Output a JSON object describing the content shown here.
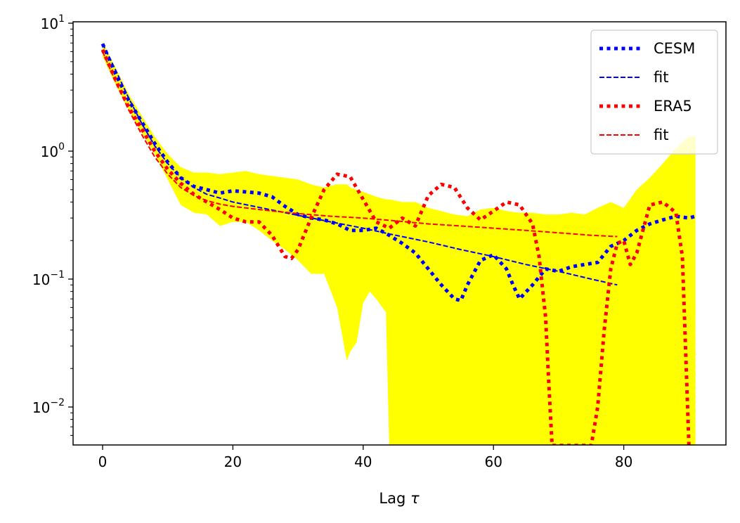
{
  "chart_data": {
    "type": "line",
    "xlabel": "Lag",
    "xlabel_symbol": "τ",
    "ylabel": "",
    "yscale": "log",
    "xlim": [
      -4.5,
      95.5
    ],
    "ylim": [
      0.005,
      10.5
    ],
    "xticks": [
      0,
      20,
      40,
      60,
      80
    ],
    "ytick_labels": [
      {
        "value": 10,
        "base": "10",
        "exp": "1"
      },
      {
        "value": 1,
        "base": "10",
        "exp": "0"
      },
      {
        "value": 0.1,
        "base": "10",
        "exp": "−1"
      },
      {
        "value": 0.01,
        "base": "10",
        "exp": "−2"
      }
    ],
    "band": {
      "name": "spread",
      "color": "#ffff00",
      "x": [
        0,
        2,
        4,
        6,
        8,
        10,
        12,
        14,
        16,
        18,
        20,
        22,
        24,
        26,
        28,
        30,
        32,
        34,
        36,
        37.5,
        38,
        39,
        40,
        41,
        42,
        43.5,
        44,
        46,
        48,
        50,
        52,
        54,
        56,
        58,
        60,
        62,
        64,
        66,
        68,
        70,
        72,
        74,
        76,
        78,
        80,
        82,
        84,
        86,
        88,
        90,
        91
      ],
      "upper": [
        7.2,
        4.5,
        2.8,
        1.9,
        1.3,
        0.95,
        0.75,
        0.68,
        0.68,
        0.66,
        0.68,
        0.7,
        0.66,
        0.64,
        0.62,
        0.6,
        0.55,
        0.52,
        0.55,
        0.55,
        0.52,
        0.5,
        0.48,
        0.46,
        0.44,
        0.42,
        0.42,
        0.4,
        0.4,
        0.36,
        0.34,
        0.32,
        0.31,
        0.35,
        0.36,
        0.34,
        0.33,
        0.33,
        0.32,
        0.32,
        0.33,
        0.32,
        0.36,
        0.4,
        0.36,
        0.5,
        0.62,
        0.8,
        1.05,
        1.3,
        1.3
      ],
      "lower": [
        5.5,
        3.3,
        2.1,
        1.4,
        0.95,
        0.6,
        0.38,
        0.33,
        0.32,
        0.26,
        0.28,
        0.28,
        0.24,
        0.2,
        0.17,
        0.14,
        0.11,
        0.11,
        0.06,
        0.023,
        0.027,
        0.032,
        0.065,
        0.08,
        0.07,
        0.055,
        0.0049,
        0.0049,
        0.0049,
        0.0049,
        0.0049,
        0.0049,
        0.0049,
        0.0049,
        0.0049,
        0.0049,
        0.0049,
        0.0049,
        0.0049,
        0.0049,
        0.0049,
        0.0049,
        0.0049,
        0.0049,
        0.0049,
        0.0049,
        0.0049,
        0.0049,
        0.0049,
        0.0049,
        0.0049
      ]
    },
    "series": [
      {
        "name": "CESM",
        "legend": "CESM",
        "color": "#0000ff",
        "style": "dotted",
        "x": [
          0,
          2,
          4,
          6,
          8,
          10,
          12,
          14,
          16,
          18,
          20,
          22,
          24,
          26,
          28,
          30,
          32,
          34,
          36,
          38,
          40,
          42,
          44,
          46,
          48,
          50,
          52,
          54,
          55,
          56,
          58,
          60,
          62,
          63,
          64,
          66,
          68,
          70,
          72,
          74,
          76,
          78,
          80,
          82,
          84,
          86,
          88,
          90,
          91
        ],
        "y": [
          6.9,
          4.0,
          2.5,
          1.7,
          1.15,
          0.82,
          0.62,
          0.53,
          0.5,
          0.47,
          0.49,
          0.48,
          0.47,
          0.44,
          0.37,
          0.32,
          0.3,
          0.29,
          0.27,
          0.24,
          0.24,
          0.25,
          0.22,
          0.19,
          0.16,
          0.12,
          0.09,
          0.07,
          0.068,
          0.09,
          0.14,
          0.155,
          0.12,
          0.09,
          0.07,
          0.09,
          0.12,
          0.115,
          0.125,
          0.13,
          0.135,
          0.18,
          0.2,
          0.24,
          0.27,
          0.29,
          0.31,
          0.3,
          0.31
        ]
      },
      {
        "name": "CESM fit",
        "legend": "fit",
        "color": "#0000ff",
        "style": "dashed",
        "x": [
          0,
          2,
          4,
          6,
          8,
          10,
          12,
          14,
          16,
          18,
          20,
          25,
          30,
          35,
          40,
          45,
          50,
          55,
          60,
          65,
          70,
          75,
          79
        ],
        "y": [
          6.9,
          4.3,
          2.6,
          1.65,
          1.1,
          0.8,
          0.62,
          0.52,
          0.46,
          0.43,
          0.4,
          0.355,
          0.315,
          0.28,
          0.25,
          0.22,
          0.195,
          0.17,
          0.15,
          0.13,
          0.115,
          0.1,
          0.09
        ]
      },
      {
        "name": "ERA5",
        "legend": "ERA5",
        "color": "#ff0000",
        "style": "dotted",
        "x": [
          0,
          2,
          4,
          6,
          8,
          10,
          12,
          14,
          16,
          18,
          20,
          22,
          24,
          26,
          28,
          29,
          30,
          32,
          34,
          36,
          38,
          40,
          42,
          44,
          46,
          48,
          50,
          52,
          54,
          56,
          58,
          60,
          62,
          64,
          66,
          67,
          68,
          68.5,
          69,
          70,
          72,
          74,
          75,
          76,
          77,
          78,
          79,
          80,
          81,
          82,
          84,
          86,
          88,
          89,
          90
        ],
        "y": [
          6.2,
          3.6,
          2.2,
          1.5,
          1.0,
          0.72,
          0.56,
          0.46,
          0.4,
          0.35,
          0.3,
          0.28,
          0.28,
          0.22,
          0.15,
          0.145,
          0.17,
          0.3,
          0.5,
          0.66,
          0.63,
          0.42,
          0.28,
          0.25,
          0.3,
          0.26,
          0.45,
          0.55,
          0.52,
          0.36,
          0.29,
          0.34,
          0.4,
          0.38,
          0.27,
          0.15,
          0.05,
          0.015,
          0.005,
          0.005,
          0.005,
          0.005,
          0.005,
          0.01,
          0.04,
          0.12,
          0.19,
          0.2,
          0.13,
          0.16,
          0.38,
          0.4,
          0.33,
          0.15,
          0.005
        ]
      },
      {
        "name": "ERA5 fit",
        "legend": "fit",
        "color": "#ff0000",
        "style": "dashed",
        "x": [
          0,
          2,
          4,
          6,
          8,
          10,
          12,
          14,
          16,
          18,
          20,
          25,
          30,
          35,
          40,
          45,
          50,
          55,
          60,
          65,
          70,
          75,
          79
        ],
        "y": [
          6.0,
          3.5,
          2.1,
          1.35,
          0.9,
          0.66,
          0.52,
          0.45,
          0.41,
          0.385,
          0.37,
          0.345,
          0.325,
          0.31,
          0.3,
          0.285,
          0.27,
          0.26,
          0.25,
          0.24,
          0.23,
          0.22,
          0.215
        ]
      }
    ],
    "legend_position": "top-right"
  }
}
